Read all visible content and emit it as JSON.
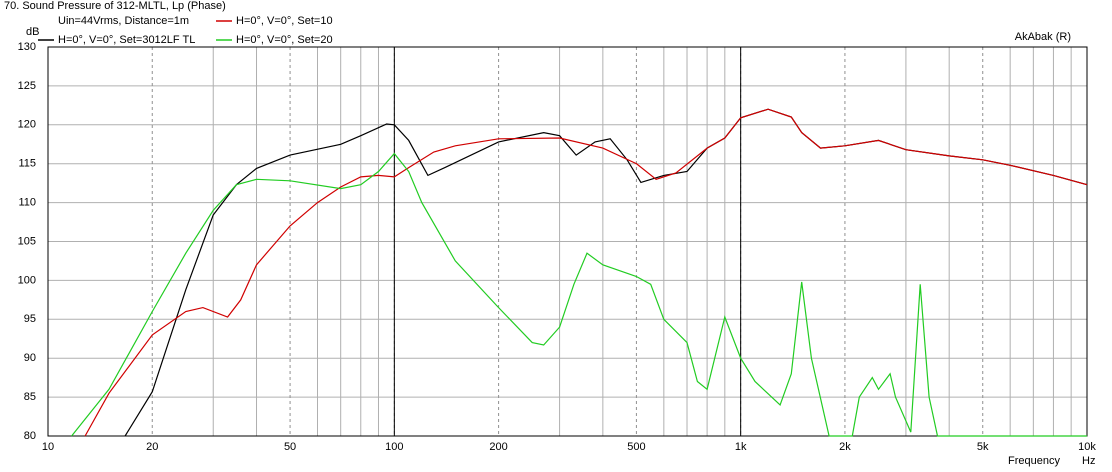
{
  "chart_data": {
    "type": "line",
    "title": "70. Sound Pressure of 312-MLTL, Lp (Phase)",
    "subtitle": "Uin=44Vrms, Distance=1m",
    "watermark": "AkAbak (R)",
    "y_label": "dB",
    "x_label": "Frequency",
    "x_unit": "Hz",
    "xscale": "log",
    "xlim": [
      10,
      10000
    ],
    "ylim": [
      80,
      130
    ],
    "xticks": [
      10,
      20,
      50,
      100,
      200,
      500,
      {
        "value": 1000,
        "label": "1k"
      },
      {
        "value": 2000,
        "label": "2k"
      },
      {
        "value": 5000,
        "label": "5k"
      },
      {
        "value": 10000,
        "label": "10k"
      }
    ],
    "xminor": [
      30,
      40,
      60,
      70,
      80,
      90,
      300,
      400,
      600,
      700,
      800,
      900,
      3000,
      4000,
      6000,
      7000,
      8000,
      9000
    ],
    "xmajor": [
      100,
      1000
    ],
    "yticks": [
      80,
      85,
      90,
      95,
      100,
      105,
      110,
      115,
      120,
      125,
      130
    ],
    "grid": true,
    "series": [
      {
        "name": "H=0°, V=0°, Set=3012LF TL",
        "color": "#000000",
        "x": [
          16.7,
          20,
          25,
          30,
          35,
          40,
          50,
          70,
          80,
          95,
          100,
          110,
          125,
          140,
          200,
          270,
          300,
          335,
          380,
          420,
          470,
          515,
          600,
          700,
          800,
          900,
          1000,
          1200,
          1400,
          1500,
          1700,
          2000,
          2500,
          3000,
          4000,
          5000,
          6000,
          8000,
          10000
        ],
        "values": [
          80,
          85.7,
          98.8,
          108.4,
          112.3,
          114.4,
          116.1,
          117.5,
          118.6,
          120.1,
          120,
          118,
          113.5,
          114.5,
          117.8,
          119,
          118.6,
          116.1,
          117.8,
          118.2,
          115.5,
          112.6,
          113.5,
          114,
          117,
          118.3,
          120.9,
          122,
          121,
          119,
          117,
          117.3,
          118,
          116.8,
          116,
          115.5,
          114.8,
          113.5,
          112.3
        ]
      },
      {
        "name": "H=0°, V=0°, Set=10",
        "color": "#d00000",
        "x": [
          12.8,
          15,
          20,
          25,
          28,
          33,
          36,
          40,
          50,
          60,
          70,
          80,
          90,
          100,
          110,
          130,
          150,
          200,
          300,
          400,
          500,
          570,
          650,
          800,
          900,
          1000,
          1200,
          1400,
          1500,
          1700,
          2000,
          2500,
          3000,
          4000,
          5000,
          6000,
          8000,
          10000
        ],
        "values": [
          80,
          85.5,
          93,
          96,
          96.5,
          95.3,
          97.5,
          102,
          107,
          110,
          112,
          113.3,
          113.5,
          113.3,
          114.5,
          116.5,
          117.3,
          118.2,
          118.3,
          117,
          115,
          113,
          113.8,
          117,
          118.3,
          120.9,
          122,
          121,
          119,
          117,
          117.3,
          118,
          116.8,
          116,
          115.5,
          114.8,
          113.5,
          112.3
        ]
      },
      {
        "name": "H=0°, V=0°, Set=20",
        "color": "#22cc22",
        "x": [
          11.7,
          15,
          20,
          25,
          30,
          35,
          40,
          50,
          70,
          80,
          90,
          100,
          110,
          120,
          150,
          200,
          250,
          270,
          300,
          330,
          360,
          400,
          500,
          550,
          600,
          700,
          750,
          800,
          900,
          1000,
          1100,
          1300,
          1400,
          1500,
          1600,
          1800,
          2100,
          2200,
          2400,
          2500,
          2700,
          2800,
          3100,
          3300,
          3500,
          3700,
          4000,
          10000
        ],
        "values": [
          80,
          86,
          96,
          103.5,
          109,
          112.3,
          113,
          112.8,
          111.8,
          112.3,
          114,
          116.3,
          114,
          110,
          102.5,
          96.5,
          92,
          91.7,
          94,
          99.5,
          103.5,
          102,
          100.5,
          99.5,
          95,
          92,
          87,
          86,
          95.3,
          90,
          87,
          84,
          88,
          99.8,
          90,
          80,
          80,
          85,
          87.5,
          86,
          88,
          85,
          80.5,
          99.5,
          85,
          80,
          80,
          80
        ]
      }
    ]
  }
}
